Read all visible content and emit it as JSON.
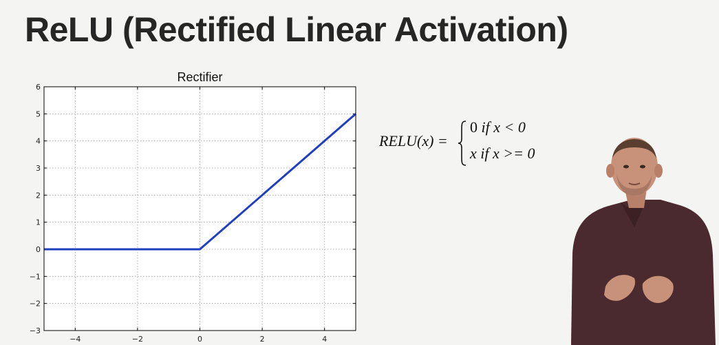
{
  "slide": {
    "title": "ReLU (Rectified Linear Activation)"
  },
  "equation": {
    "lhs": "RELU(x) =",
    "case1": "0 if x < 0",
    "case2": "x if x >= 0",
    "case1_value": "0",
    "case1_cond_if": "if",
    "case1_cond": "x < 0",
    "case2_value": "x",
    "case2_cond_if": "if",
    "case2_cond": "x >= 0"
  },
  "presenter": {
    "shirt_color": "#4a2a2e",
    "skin_color": "#c8927a"
  },
  "chart_data": {
    "type": "line",
    "title": "Rectifier",
    "xlabel": "",
    "ylabel": "",
    "xlim": [
      -5,
      5
    ],
    "ylim": [
      -3,
      6
    ],
    "x_ticks": [
      -4,
      -2,
      0,
      2,
      4
    ],
    "x_tick_labels": [
      "−4",
      "−2",
      "0",
      "2",
      "4"
    ],
    "y_ticks": [
      -3,
      -2,
      -1,
      0,
      1,
      2,
      3,
      4,
      5,
      6
    ],
    "y_tick_labels": [
      "−3",
      "−2",
      "−1",
      "0",
      "1",
      "2",
      "3",
      "4",
      "5",
      "6"
    ],
    "grid": true,
    "series": [
      {
        "color": "#1f3fbf",
        "x": [
          -5,
          0,
          5
        ],
        "y": [
          0,
          0,
          5
        ]
      }
    ]
  }
}
